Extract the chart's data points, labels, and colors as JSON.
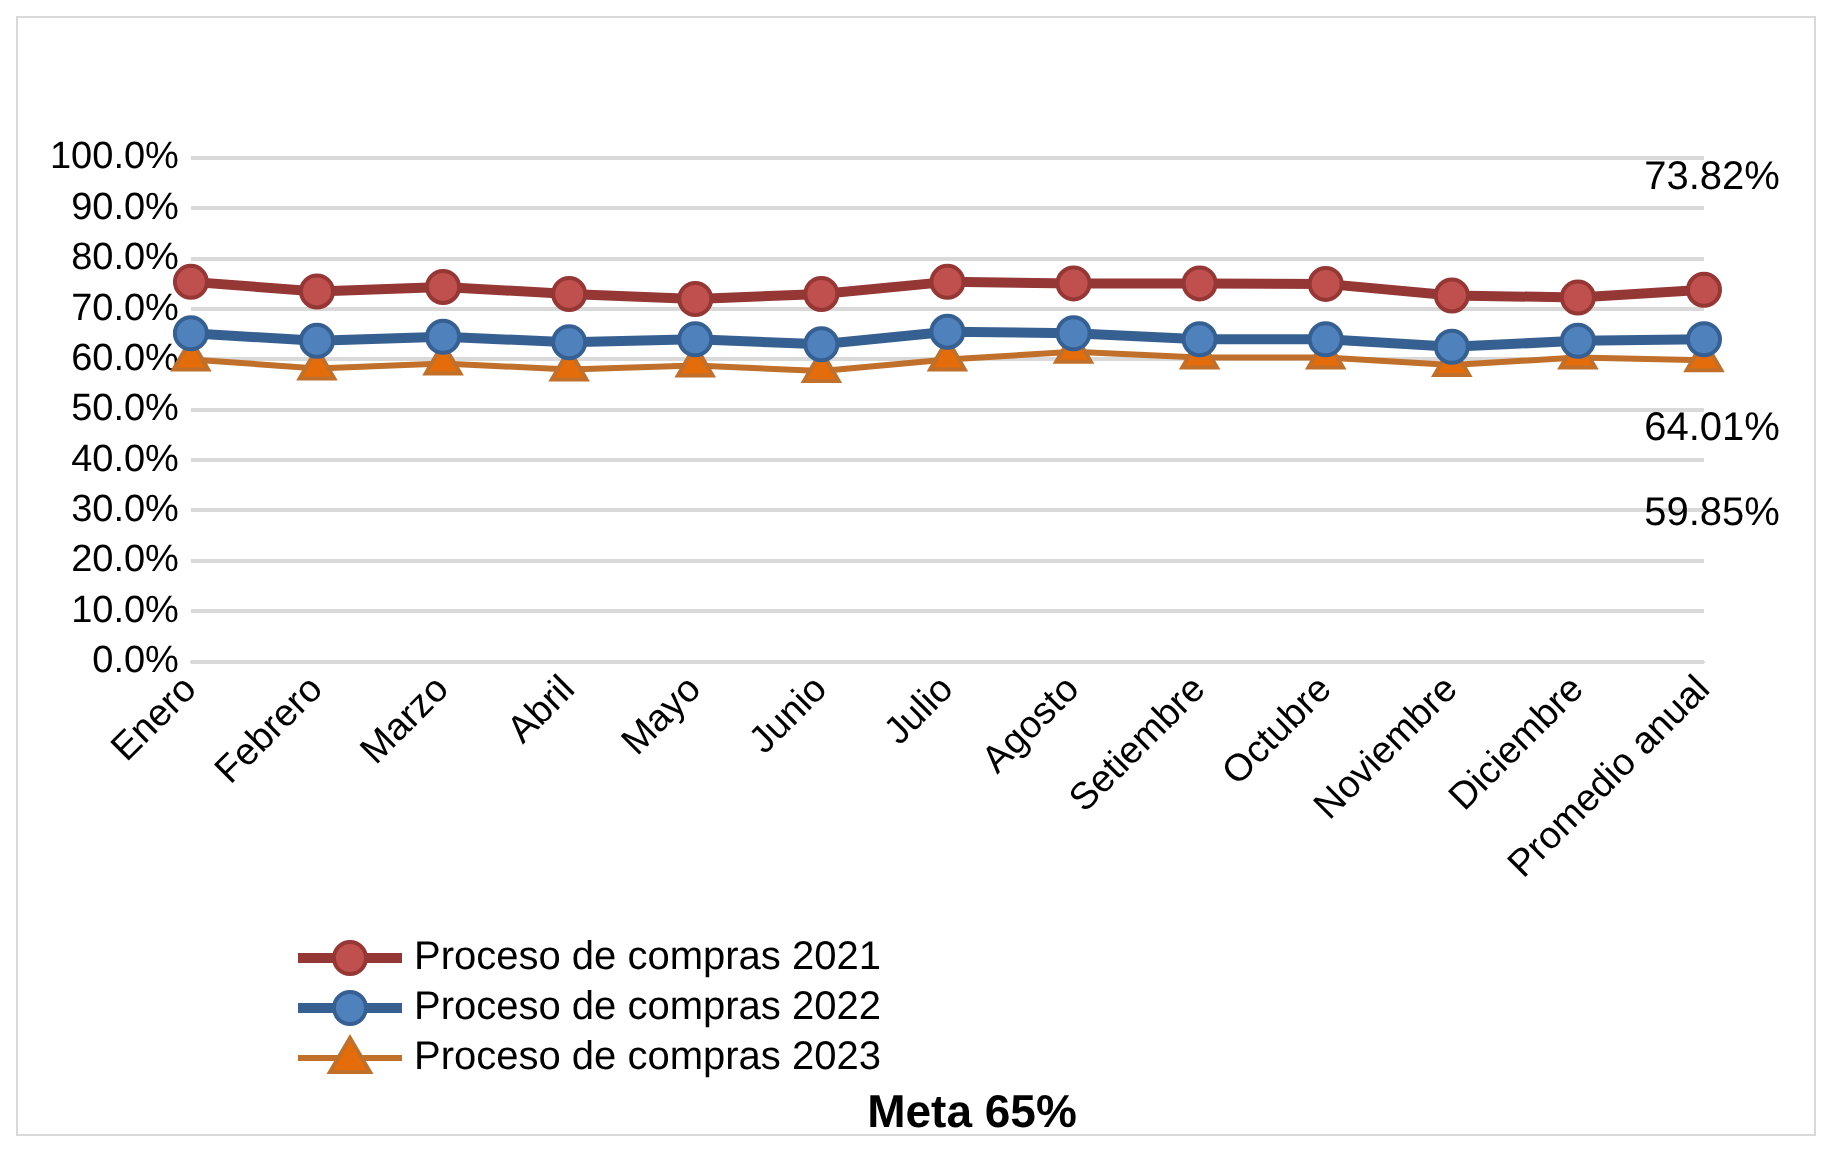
{
  "chart_data": {
    "type": "line",
    "categories": [
      "Enero",
      "Febrero",
      "Marzo",
      "Abril",
      "Mayo",
      "Junio",
      "Julio",
      "Agosto",
      "Setiembre",
      "Octubre",
      "Noviembre",
      "Diciembre",
      "Promedio anual"
    ],
    "series": [
      {
        "name": "Proceso de compras 2021",
        "color": "#953735",
        "values": [
          75.4,
          73.5,
          74.4,
          73.0,
          72.0,
          73.0,
          75.4,
          75.1,
          75.1,
          75.0,
          72.7,
          72.3,
          73.82
        ],
        "value_labels": [
          null,
          null,
          null,
          null,
          null,
          null,
          null,
          null,
          null,
          null,
          null,
          null,
          "73.82%"
        ]
      },
      {
        "name": "Proceso de compras 2022",
        "color": "#376092",
        "values": [
          65.2,
          63.7,
          64.5,
          63.4,
          64.0,
          63.0,
          65.5,
          65.2,
          64.0,
          64.0,
          62.5,
          63.7,
          64.01
        ],
        "value_labels": [
          null,
          null,
          null,
          null,
          null,
          null,
          null,
          null,
          null,
          null,
          null,
          null,
          "64.01%"
        ]
      },
      {
        "name": "Proceso de compras 2023",
        "color": "#c0702a",
        "marker": "triangle",
        "values": [
          60.0,
          58.2,
          59.2,
          58.0,
          58.8,
          57.7,
          60.0,
          61.5,
          60.4,
          60.4,
          58.9,
          60.4,
          59.85
        ],
        "value_labels": [
          null,
          null,
          null,
          null,
          null,
          null,
          null,
          null,
          null,
          null,
          null,
          null,
          "59.85%"
        ]
      }
    ],
    "ylim": [
      0,
      100
    ],
    "yticks": [
      {
        "value": 0,
        "label": "0.0%"
      },
      {
        "value": 10,
        "label": "10.0%"
      },
      {
        "value": 20,
        "label": "20.0%"
      },
      {
        "value": 30,
        "label": "30.0%"
      },
      {
        "value": 40,
        "label": "40.0%"
      },
      {
        "value": 50,
        "label": "50.0%"
      },
      {
        "value": 60,
        "label": "60.0%"
      },
      {
        "value": 70,
        "label": "70.0%"
      },
      {
        "value": 80,
        "label": "80.0%"
      },
      {
        "value": 90,
        "label": "90.0%"
      },
      {
        "value": 100,
        "label": "100.0%"
      }
    ],
    "grid": "y",
    "legend": "bottom left",
    "marker": "circle",
    "annotations": [
      "Meta 65%"
    ]
  }
}
